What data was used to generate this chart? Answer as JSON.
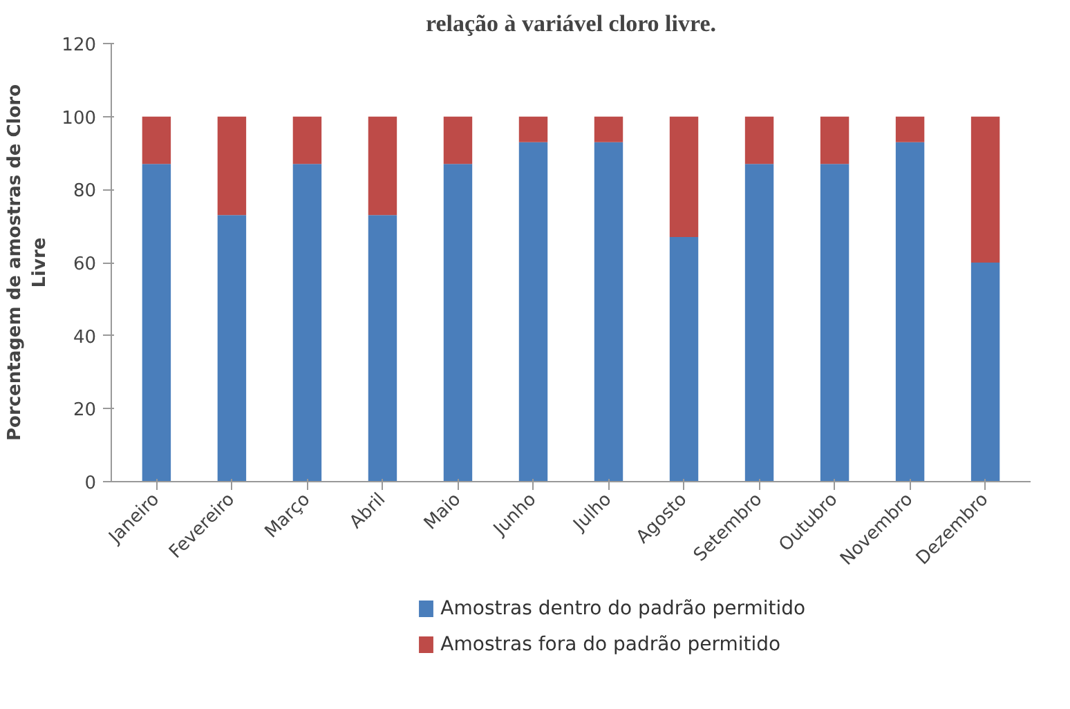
{
  "chart_data": {
    "type": "bar",
    "stacked": true,
    "title": "relação à variável cloro livre.",
    "ylabel": "Porcentagem de amostras de Cloro\nLivre",
    "categories": [
      "Janeiro",
      "Fevereiro",
      "Março",
      "Abril",
      "Maio",
      "Junho",
      "Julho",
      "Agosto",
      "Setembro",
      "Outubro",
      "Novembro",
      "Dezembro"
    ],
    "series": [
      {
        "name": "Amostras dentro do padrão permitido",
        "color": "#4a7ebb",
        "values": [
          87,
          73,
          87,
          73,
          87,
          93,
          93,
          67,
          87,
          87,
          93,
          60
        ]
      },
      {
        "name": "Amostras fora do padrão permitido",
        "color": "#be4b48",
        "values": [
          13,
          27,
          13,
          27,
          13,
          7,
          7,
          33,
          13,
          13,
          7,
          40
        ]
      }
    ],
    "ylim": [
      0,
      120
    ],
    "yticks": [
      0,
      20,
      40,
      60,
      80,
      100,
      120
    ],
    "grid": false,
    "legend": "bottom"
  }
}
